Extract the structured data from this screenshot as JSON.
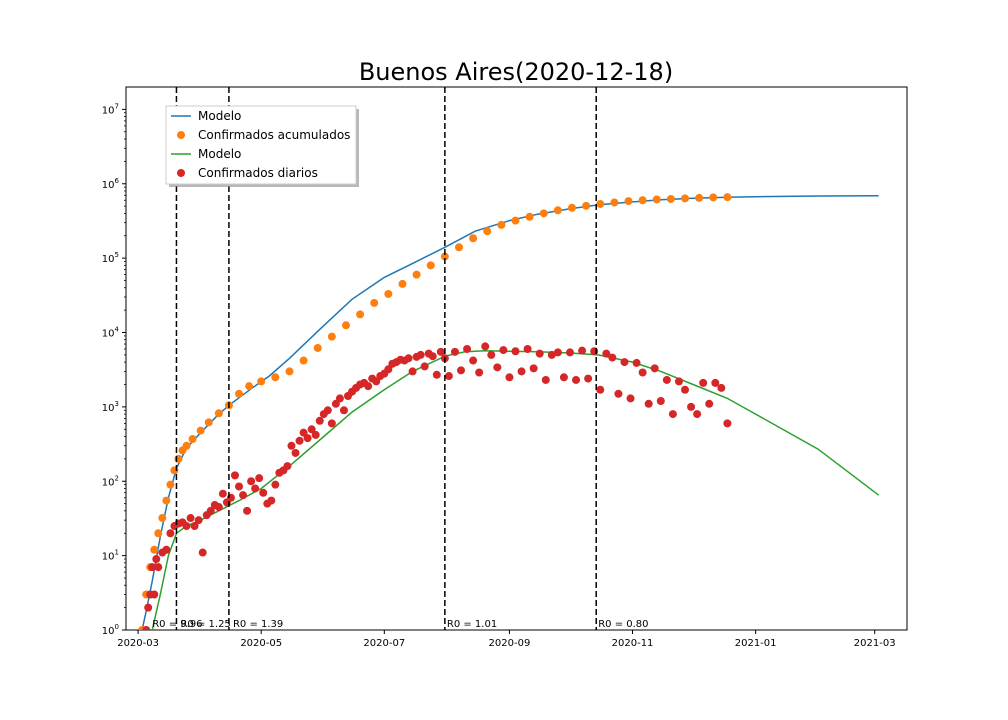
{
  "chart_data": {
    "type": "scatter",
    "title": "Buenos Aires(2020-12-18)",
    "xlabel": "",
    "ylabel": "",
    "y_scale": "log",
    "ylim": [
      1,
      20000000
    ],
    "xlim": [
      "2020-02-24",
      "2021-03-17"
    ],
    "x_ticks": [
      "2020-03",
      "2020-05",
      "2020-07",
      "2020-09",
      "2020-11",
      "2021-01",
      "2021-03"
    ],
    "y_ticks": [
      {
        "base": "10",
        "exp": "0"
      },
      {
        "base": "10",
        "exp": "1"
      },
      {
        "base": "10",
        "exp": "2"
      },
      {
        "base": "10",
        "exp": "3"
      },
      {
        "base": "10",
        "exp": "4"
      },
      {
        "base": "10",
        "exp": "5"
      },
      {
        "base": "10",
        "exp": "6"
      },
      {
        "base": "10",
        "exp": "7"
      }
    ],
    "grid": false,
    "legend_position": "top-left",
    "legend": [
      "Modelo",
      "Confirmados acumulados",
      "Modelo",
      "Confirmados diarios"
    ],
    "series": [
      {
        "name": "Modelo",
        "kind": "line",
        "color": "#1f77b4",
        "x": [
          "2020-03-03",
          "2020-03-05",
          "2020-03-08",
          "2020-03-12",
          "2020-03-16",
          "2020-03-20",
          "2020-03-25",
          "2020-04-01",
          "2020-04-10",
          "2020-04-16",
          "2020-04-26",
          "2020-05-05",
          "2020-05-15",
          "2020-05-30",
          "2020-06-15",
          "2020-07-01",
          "2020-07-15",
          "2020-07-31",
          "2020-08-15",
          "2020-09-01",
          "2020-09-15",
          "2020-10-01",
          "2020-10-15",
          "2020-11-01",
          "2020-11-15",
          "2020-12-01",
          "2020-12-18",
          "2021-01-01",
          "2021-02-01",
          "2021-03-03"
        ],
        "y": [
          1.0,
          1.8,
          4.5,
          18,
          60,
          150,
          280,
          450,
          800,
          1100,
          1750,
          2600,
          4500,
          11000,
          28000,
          55000,
          85000,
          140000,
          230000,
          320000,
          390000,
          460000,
          520000,
          570000,
          610000,
          640000,
          660000,
          670000,
          685000,
          690000
        ]
      },
      {
        "name": "Confirmados acumulados",
        "kind": "scatter",
        "color": "#ff7f0e",
        "x": [
          "2020-03-03",
          "2020-03-05",
          "2020-03-07",
          "2020-03-09",
          "2020-03-11",
          "2020-03-13",
          "2020-03-15",
          "2020-03-17",
          "2020-03-19",
          "2020-03-21",
          "2020-03-23",
          "2020-03-25",
          "2020-03-28",
          "2020-04-01",
          "2020-04-05",
          "2020-04-10",
          "2020-04-15",
          "2020-04-20",
          "2020-04-25",
          "2020-05-01",
          "2020-05-08",
          "2020-05-15",
          "2020-05-22",
          "2020-05-29",
          "2020-06-05",
          "2020-06-12",
          "2020-06-19",
          "2020-06-26",
          "2020-07-03",
          "2020-07-10",
          "2020-07-17",
          "2020-07-24",
          "2020-07-31",
          "2020-08-07",
          "2020-08-14",
          "2020-08-21",
          "2020-08-28",
          "2020-09-04",
          "2020-09-11",
          "2020-09-18",
          "2020-09-25",
          "2020-10-02",
          "2020-10-09",
          "2020-10-16",
          "2020-10-23",
          "2020-10-30",
          "2020-11-06",
          "2020-11-13",
          "2020-11-20",
          "2020-11-27",
          "2020-12-04",
          "2020-12-11",
          "2020-12-18"
        ],
        "y": [
          1,
          3,
          7,
          12,
          20,
          32,
          55,
          90,
          140,
          200,
          260,
          300,
          370,
          480,
          620,
          820,
          1050,
          1500,
          1900,
          2200,
          2500,
          3000,
          4200,
          6200,
          8800,
          12500,
          17500,
          25000,
          33000,
          45000,
          60000,
          80000,
          105000,
          140000,
          185000,
          230000,
          280000,
          320000,
          360000,
          400000,
          440000,
          475000,
          505000,
          535000,
          560000,
          585000,
          600000,
          615000,
          625000,
          635000,
          645000,
          655000,
          660000
        ]
      },
      {
        "name": "Modelo",
        "kind": "line",
        "color": "#2ca02c",
        "x": [
          "2020-03-08",
          "2020-03-12",
          "2020-03-16",
          "2020-03-20",
          "2020-03-25",
          "2020-04-01",
          "2020-04-10",
          "2020-04-20",
          "2020-05-01",
          "2020-05-15",
          "2020-06-01",
          "2020-06-15",
          "2020-07-01",
          "2020-07-15",
          "2020-07-31",
          "2020-08-10",
          "2020-08-20",
          "2020-09-01",
          "2020-09-15",
          "2020-10-01",
          "2020-10-15",
          "2020-11-01",
          "2020-11-15",
          "2020-12-01",
          "2020-12-18",
          "2021-01-01",
          "2021-02-01",
          "2021-03-03"
        ],
        "y": [
          1,
          3,
          10,
          20,
          25,
          30,
          40,
          55,
          80,
          160,
          400,
          850,
          1700,
          3000,
          4800,
          5500,
          5700,
          5600,
          5500,
          5300,
          5000,
          4000,
          3000,
          2000,
          1300,
          800,
          270,
          65
        ]
      },
      {
        "name": "Confirmados diarios",
        "kind": "scatter",
        "color": "#d62728",
        "x": [
          "2020-03-05",
          "2020-03-06",
          "2020-03-07",
          "2020-03-08",
          "2020-03-09",
          "2020-03-10",
          "2020-03-11",
          "2020-03-13",
          "2020-03-15",
          "2020-03-17",
          "2020-03-19",
          "2020-03-21",
          "2020-03-23",
          "2020-03-25",
          "2020-03-27",
          "2020-03-29",
          "2020-03-31",
          "2020-04-02",
          "2020-04-04",
          "2020-04-06",
          "2020-04-08",
          "2020-04-10",
          "2020-04-12",
          "2020-04-14",
          "2020-04-16",
          "2020-04-18",
          "2020-04-20",
          "2020-04-22",
          "2020-04-24",
          "2020-04-26",
          "2020-04-28",
          "2020-04-30",
          "2020-05-02",
          "2020-05-04",
          "2020-05-06",
          "2020-05-08",
          "2020-05-10",
          "2020-05-12",
          "2020-05-14",
          "2020-05-16",
          "2020-05-18",
          "2020-05-20",
          "2020-05-22",
          "2020-05-24",
          "2020-05-26",
          "2020-05-28",
          "2020-05-30",
          "2020-06-01",
          "2020-06-03",
          "2020-06-05",
          "2020-06-07",
          "2020-06-09",
          "2020-06-11",
          "2020-06-13",
          "2020-06-15",
          "2020-06-17",
          "2020-06-19",
          "2020-06-21",
          "2020-06-23",
          "2020-06-25",
          "2020-06-27",
          "2020-06-29",
          "2020-07-01",
          "2020-07-03",
          "2020-07-05",
          "2020-07-07",
          "2020-07-09",
          "2020-07-11",
          "2020-07-13",
          "2020-07-15",
          "2020-07-17",
          "2020-07-19",
          "2020-07-21",
          "2020-07-23",
          "2020-07-25",
          "2020-07-27",
          "2020-07-29",
          "2020-07-31",
          "2020-08-02",
          "2020-08-05",
          "2020-08-08",
          "2020-08-11",
          "2020-08-14",
          "2020-08-17",
          "2020-08-20",
          "2020-08-23",
          "2020-08-26",
          "2020-08-29",
          "2020-09-01",
          "2020-09-04",
          "2020-09-07",
          "2020-09-10",
          "2020-09-13",
          "2020-09-16",
          "2020-09-19",
          "2020-09-22",
          "2020-09-25",
          "2020-09-28",
          "2020-10-01",
          "2020-10-04",
          "2020-10-07",
          "2020-10-10",
          "2020-10-13",
          "2020-10-16",
          "2020-10-19",
          "2020-10-22",
          "2020-10-25",
          "2020-10-28",
          "2020-10-31",
          "2020-11-03",
          "2020-11-06",
          "2020-11-09",
          "2020-11-12",
          "2020-11-15",
          "2020-11-18",
          "2020-11-21",
          "2020-11-24",
          "2020-11-27",
          "2020-11-30",
          "2020-12-03",
          "2020-12-06",
          "2020-12-09",
          "2020-12-12",
          "2020-12-15",
          "2020-12-18"
        ],
        "y": [
          1,
          2,
          3,
          7,
          3,
          9,
          7,
          11,
          12,
          20,
          25,
          27,
          28,
          25,
          32,
          25,
          30,
          11,
          35,
          40,
          48,
          45,
          68,
          52,
          60,
          120,
          85,
          65,
          40,
          100,
          80,
          110,
          70,
          50,
          55,
          90,
          130,
          140,
          160,
          300,
          240,
          350,
          450,
          380,
          500,
          420,
          650,
          800,
          900,
          600,
          1100,
          1300,
          900,
          1400,
          1600,
          1800,
          2000,
          2100,
          1900,
          2400,
          2200,
          2600,
          2800,
          3200,
          3800,
          4000,
          4300,
          4200,
          4500,
          3000,
          4700,
          5000,
          3500,
          5200,
          4800,
          2700,
          5500,
          4500,
          2600,
          5500,
          3100,
          6000,
          4200,
          2900,
          6500,
          5000,
          3400,
          5800,
          2500,
          5600,
          3000,
          6000,
          3300,
          5200,
          2300,
          5000,
          5400,
          2500,
          5400,
          2300,
          5700,
          2400,
          5600,
          1700,
          5200,
          4600,
          1500,
          4000,
          1300,
          3900,
          2900,
          1100,
          3300,
          1200,
          2300,
          800,
          2200,
          1700,
          1000,
          800,
          2100,
          1100,
          2100,
          1800,
          600
        ]
      }
    ],
    "vertical_lines": [
      {
        "x": "2020-03-20",
        "label": "R0 = 9.96"
      },
      {
        "x": "2020-04-15",
        "label": "R0 = 1.25"
      },
      {
        "x": "2020-07-31",
        "label": "R0 = 1.39"
      },
      {
        "x": "2020-10-14",
        "label": "R0 = 1.01"
      }
    ],
    "vertical_line_labels": [
      {
        "x": "2020-03-08",
        "label": "R0 = 9.96"
      },
      {
        "x": "2020-03-22",
        "label": "R0 = 1.25"
      },
      {
        "x": "2020-04-17",
        "label": "R0 = 1.39"
      },
      {
        "x": "2020-08-01",
        "label": "R0 = 1.01"
      },
      {
        "x": "2020-10-15",
        "label": "R0 = 0.80"
      }
    ]
  }
}
